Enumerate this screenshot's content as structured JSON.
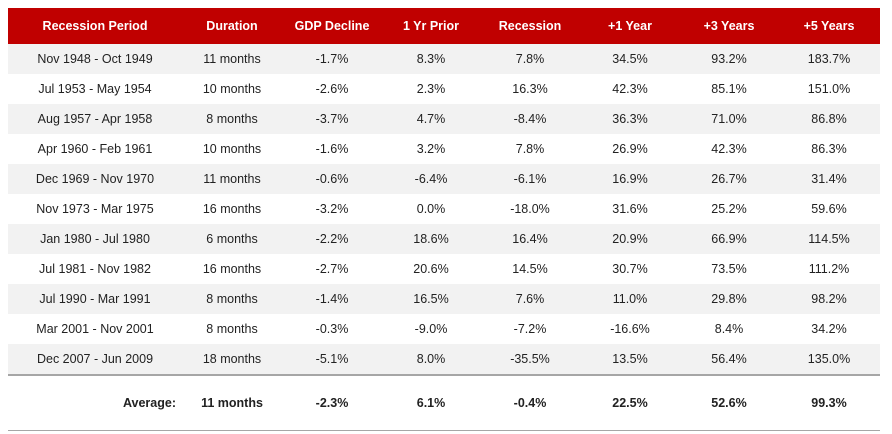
{
  "table": {
    "header": [
      "Recession Period",
      "Duration",
      "GDP Decline",
      "1 Yr Prior",
      "Recession",
      "+1 Year",
      "+3 Years",
      "+5 Years"
    ],
    "rows": [
      [
        "Nov 1948 - Oct 1949",
        "11 months",
        "-1.7%",
        "8.3%",
        "7.8%",
        "34.5%",
        "93.2%",
        "183.7%"
      ],
      [
        "Jul 1953 - May 1954",
        "10 months",
        "-2.6%",
        "2.3%",
        "16.3%",
        "42.3%",
        "85.1%",
        "151.0%"
      ],
      [
        "Aug 1957 - Apr 1958",
        "8 months",
        "-3.7%",
        "4.7%",
        "-8.4%",
        "36.3%",
        "71.0%",
        "86.8%"
      ],
      [
        "Apr 1960 - Feb 1961",
        "10 months",
        "-1.6%",
        "3.2%",
        "7.8%",
        "26.9%",
        "42.3%",
        "86.3%"
      ],
      [
        "Dec 1969 - Nov 1970",
        "11 months",
        "-0.6%",
        "-6.4%",
        "-6.1%",
        "16.9%",
        "26.7%",
        "31.4%"
      ],
      [
        "Nov 1973 - Mar 1975",
        "16 months",
        "-3.2%",
        "0.0%",
        "-18.0%",
        "31.6%",
        "25.2%",
        "59.6%"
      ],
      [
        "Jan 1980 - Jul 1980",
        "6 months",
        "-2.2%",
        "18.6%",
        "16.4%",
        "20.9%",
        "66.9%",
        "114.5%"
      ],
      [
        "Jul 1981 - Nov 1982",
        "16 months",
        "-2.7%",
        "20.6%",
        "14.5%",
        "30.7%",
        "73.5%",
        "111.2%"
      ],
      [
        "Jul 1990 - Mar 1991",
        "8 months",
        "-1.4%",
        "16.5%",
        "7.6%",
        "11.0%",
        "29.8%",
        "98.2%"
      ],
      [
        "Mar 2001 - Nov 2001",
        "8 months",
        "-0.3%",
        "-9.0%",
        "-7.2%",
        "-16.6%",
        "8.4%",
        "34.2%"
      ],
      [
        "Dec 2007 - Jun 2009",
        "18 months",
        "-5.1%",
        "8.0%",
        "-35.5%",
        "13.5%",
        "56.4%",
        "135.0%"
      ]
    ],
    "average": [
      "Average:",
      "11 months",
      "-2.3%",
      "6.1%",
      "-0.4%",
      "22.5%",
      "52.6%",
      "99.3%"
    ]
  }
}
